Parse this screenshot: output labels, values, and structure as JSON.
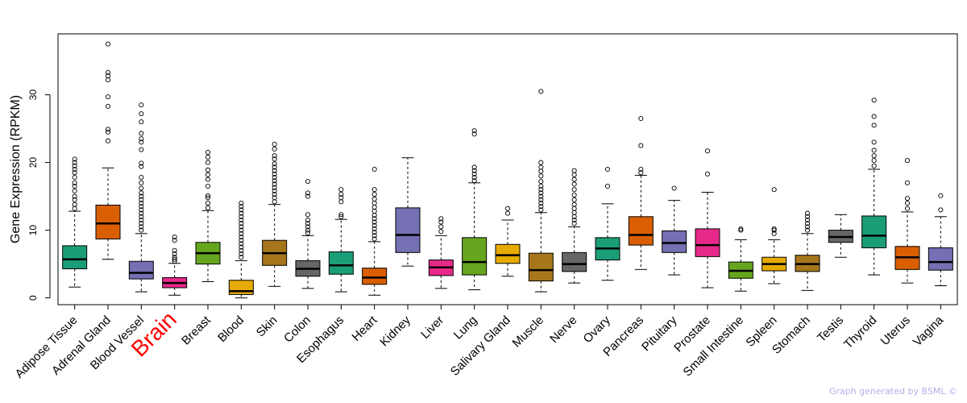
{
  "chart_data": {
    "type": "boxplot",
    "title": "",
    "xlabel": "",
    "ylabel": "Gene Expression (RPKM)",
    "ylim": [
      -1,
      39
    ],
    "yticks": [
      0,
      10,
      20,
      30
    ],
    "grid": false,
    "highlight": "Brain",
    "highlight_color": "#ff0000",
    "series": [
      {
        "name": "Adipose Tissue",
        "color": "#1b9e77",
        "q1": 4.3,
        "median": 5.7,
        "q3": 7.7,
        "whisker_low": 1.6,
        "whisker_high": 12.8,
        "outliers": [
          13.2,
          13.8,
          14.5,
          15.0,
          15.8,
          16.5,
          17.0,
          17.8,
          18.5,
          19.0,
          19.5,
          20.0,
          20.5
        ]
      },
      {
        "name": "Adrenal Gland",
        "color": "#d95f02",
        "q1": 8.7,
        "median": 11.0,
        "q3": 13.7,
        "whisker_low": 5.7,
        "whisker_high": 19.2,
        "outliers": [
          23.2,
          24.5,
          24.9,
          28.3,
          29.7,
          32.2,
          32.8,
          33.3,
          37.5
        ]
      },
      {
        "name": "Blood Vessel",
        "color": "#7570b3",
        "q1": 2.8,
        "median": 3.7,
        "q3": 5.4,
        "whisker_low": 0.9,
        "whisker_high": 9.5,
        "outliers": [
          10.0,
          10.5,
          11.0,
          11.5,
          12.0,
          12.5,
          13.0,
          13.5,
          14.0,
          14.5,
          15.0,
          15.5,
          16.2,
          17.0,
          17.8,
          19.4,
          19.9,
          21.9,
          23.0,
          23.5,
          24.3,
          26.0,
          27.2,
          28.5
        ]
      },
      {
        "name": "Brain",
        "color": "#e7298a",
        "q1": 1.5,
        "median": 2.2,
        "q3": 3.0,
        "whisker_low": 0.4,
        "whisker_high": 5.1,
        "outliers": [
          5.4,
          5.7,
          6.0,
          6.5,
          7.0,
          8.5,
          9.0
        ]
      },
      {
        "name": "Breast",
        "color": "#66a61e",
        "q1": 5.0,
        "median": 6.6,
        "q3": 8.2,
        "whisker_low": 2.4,
        "whisker_high": 12.9,
        "outliers": [
          13.3,
          14.0,
          14.8,
          15.1,
          16.5,
          17.5,
          18.2,
          18.9,
          20.0,
          20.8,
          21.5
        ]
      },
      {
        "name": "Blood",
        "color": "#e6ab02",
        "q1": 0.5,
        "median": 1.0,
        "q3": 2.6,
        "whisker_low": 0.0,
        "whisker_high": 5.5,
        "outliers": [
          6.0,
          6.5,
          7.0,
          7.5,
          8.0,
          8.5,
          9.0,
          9.5,
          10.0,
          10.5,
          11.0,
          11.5,
          12.0,
          12.5,
          13.0,
          13.5,
          14.0
        ]
      },
      {
        "name": "Skin",
        "color": "#a6761d",
        "q1": 4.8,
        "median": 6.6,
        "q3": 8.5,
        "whisker_low": 1.7,
        "whisker_high": 13.8,
        "outliers": [
          14.2,
          14.8,
          15.3,
          15.8,
          16.3,
          16.8,
          17.3,
          17.8,
          18.3,
          18.8,
          19.3,
          19.8,
          20.5,
          21.0,
          22.0,
          22.7
        ]
      },
      {
        "name": "Colon",
        "color": "#666666",
        "q1": 3.2,
        "median": 4.3,
        "q3": 5.5,
        "whisker_low": 1.4,
        "whisker_high": 9.2,
        "outliers": [
          9.6,
          10.0,
          10.5,
          11.0,
          11.5,
          12.3,
          15.0,
          15.5,
          17.2
        ]
      },
      {
        "name": "Esophagus",
        "color": "#1b9e77",
        "q1": 3.5,
        "median": 4.8,
        "q3": 6.8,
        "whisker_low": 0.9,
        "whisker_high": 11.6,
        "outliers": [
          12.0,
          12.3,
          14.2,
          14.8,
          15.3,
          16.0
        ]
      },
      {
        "name": "Heart",
        "color": "#d95f02",
        "q1": 2.0,
        "median": 3.0,
        "q3": 4.4,
        "whisker_low": 0.4,
        "whisker_high": 8.3,
        "outliers": [
          8.7,
          9.2,
          9.7,
          10.2,
          10.7,
          11.2,
          11.7,
          12.2,
          12.8,
          13.4,
          14.0,
          14.6,
          15.3,
          16.0,
          19.0
        ]
      },
      {
        "name": "Kidney",
        "color": "#7570b3",
        "q1": 6.7,
        "median": 9.3,
        "q3": 13.3,
        "whisker_low": 4.7,
        "whisker_high": 20.7,
        "outliers": []
      },
      {
        "name": "Liver",
        "color": "#e7298a",
        "q1": 3.3,
        "median": 4.5,
        "q3": 5.6,
        "whisker_low": 1.4,
        "whisker_high": 9.2,
        "outliers": [
          9.8,
          10.5,
          11.2,
          11.7
        ]
      },
      {
        "name": "Lung",
        "color": "#66a61e",
        "q1": 3.4,
        "median": 5.3,
        "q3": 8.9,
        "whisker_low": 1.2,
        "whisker_high": 17.0,
        "outliers": [
          17.3,
          17.8,
          18.3,
          18.8,
          19.3,
          24.2,
          24.7
        ]
      },
      {
        "name": "Salivary Gland",
        "color": "#e6ab02",
        "q1": 5.1,
        "median": 6.3,
        "q3": 7.9,
        "whisker_low": 3.2,
        "whisker_high": 11.5,
        "outliers": [
          12.5,
          13.2
        ]
      },
      {
        "name": "Muscle",
        "color": "#a6761d",
        "q1": 2.5,
        "median": 4.1,
        "q3": 6.6,
        "whisker_low": 0.9,
        "whisker_high": 12.6,
        "outliers": [
          13.0,
          13.5,
          14.0,
          14.5,
          15.0,
          15.5,
          16.0,
          16.5,
          17.2,
          18.0,
          18.7,
          19.3,
          20.0,
          30.5
        ]
      },
      {
        "name": "Nerve",
        "color": "#666666",
        "q1": 3.9,
        "median": 5.0,
        "q3": 6.7,
        "whisker_low": 2.2,
        "whisker_high": 10.5,
        "outliers": [
          11.0,
          11.5,
          12.0,
          12.6,
          13.2,
          13.8,
          14.5,
          15.2,
          16.0,
          16.8,
          17.5,
          18.2,
          18.8
        ]
      },
      {
        "name": "Ovary",
        "color": "#1b9e77",
        "q1": 5.6,
        "median": 7.3,
        "q3": 8.9,
        "whisker_low": 2.6,
        "whisker_high": 13.9,
        "outliers": [
          16.5,
          19.0
        ]
      },
      {
        "name": "Pancreas",
        "color": "#d95f02",
        "q1": 7.8,
        "median": 9.3,
        "q3": 12.0,
        "whisker_low": 4.2,
        "whisker_high": 18.1,
        "outliers": [
          18.5,
          19.0,
          22.5,
          26.5
        ]
      },
      {
        "name": "Pituitary",
        "color": "#7570b3",
        "q1": 6.7,
        "median": 8.1,
        "q3": 9.9,
        "whisker_low": 3.4,
        "whisker_high": 14.4,
        "outliers": [
          16.2
        ]
      },
      {
        "name": "Prostate",
        "color": "#e7298a",
        "q1": 6.1,
        "median": 7.8,
        "q3": 10.2,
        "whisker_low": 1.5,
        "whisker_high": 15.6,
        "outliers": [
          18.3,
          21.7
        ]
      },
      {
        "name": "Small Intestine",
        "color": "#66a61e",
        "q1": 2.9,
        "median": 4.0,
        "q3": 5.3,
        "whisker_low": 1.0,
        "whisker_high": 8.6,
        "outliers": [
          10.0,
          10.2
        ]
      },
      {
        "name": "Spleen",
        "color": "#e6ab02",
        "q1": 4.0,
        "median": 5.0,
        "q3": 6.0,
        "whisker_low": 2.1,
        "whisker_high": 8.6,
        "outliers": [
          9.5,
          10.0,
          10.2,
          16.0
        ]
      },
      {
        "name": "Stomach",
        "color": "#a6761d",
        "q1": 3.9,
        "median": 5.0,
        "q3": 6.3,
        "whisker_low": 1.1,
        "whisker_high": 9.5,
        "outliers": [
          10.0,
          10.5,
          11.0,
          11.5,
          12.0,
          12.5
        ]
      },
      {
        "name": "Testis",
        "color": "#666666",
        "q1": 8.2,
        "median": 9.0,
        "q3": 10.0,
        "whisker_low": 6.0,
        "whisker_high": 12.3,
        "outliers": []
      },
      {
        "name": "Thyroid",
        "color": "#1b9e77",
        "q1": 7.4,
        "median": 9.2,
        "q3": 12.1,
        "whisker_low": 3.4,
        "whisker_high": 19.0,
        "outliers": [
          19.5,
          20.3,
          21.0,
          21.8,
          23.0,
          25.5,
          26.8,
          29.2
        ]
      },
      {
        "name": "Uterus",
        "color": "#d95f02",
        "q1": 4.2,
        "median": 6.0,
        "q3": 7.6,
        "whisker_low": 2.2,
        "whisker_high": 12.7,
        "outliers": [
          13.2,
          14.0,
          14.7,
          17.0,
          20.3
        ]
      },
      {
        "name": "Vagina",
        "color": "#7570b3",
        "q1": 4.1,
        "median": 5.3,
        "q3": 7.4,
        "whisker_low": 1.8,
        "whisker_high": 12.0,
        "outliers": [
          13.0,
          15.1
        ]
      }
    ]
  },
  "footer": {
    "credit": "Graph generated by BSML ©"
  }
}
